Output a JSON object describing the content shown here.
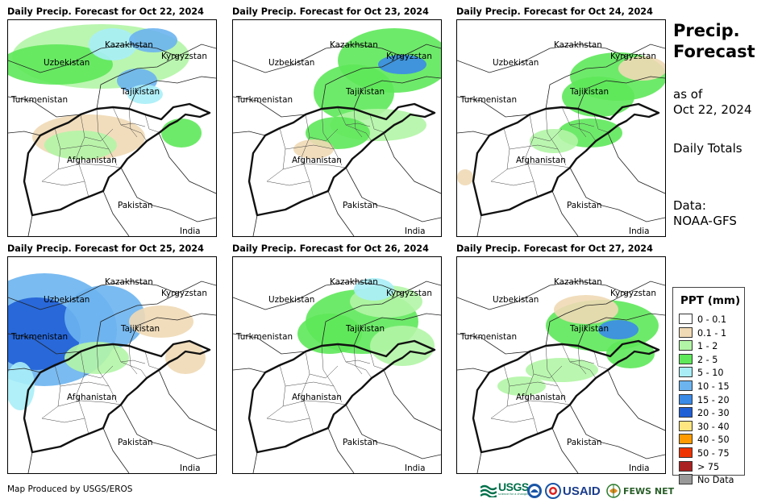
{
  "panels": [
    {
      "title": "Daily Precip. Forecast for Oct 22, 2024"
    },
    {
      "title": "Daily Precip. Forecast for Oct 23, 2024"
    },
    {
      "title": "Daily Precip. Forecast for Oct 24, 2024"
    },
    {
      "title": "Daily Precip. Forecast for Oct 25, 2024"
    },
    {
      "title": "Daily Precip. Forecast for Oct 26, 2024"
    },
    {
      "title": "Daily Precip. Forecast for Oct 27, 2024"
    }
  ],
  "map_labels": {
    "kazakhstan": "Kazakhstan",
    "kyrgyzstan": "Kyrgyzstan",
    "uzbekistan": "Uzbekistan",
    "tajikistan": "Tajikistan",
    "turkmenistan": "Turkmenistan",
    "afghanistan": "Afghanistan",
    "pakistan": "Pakistan",
    "india": "India"
  },
  "side": {
    "title_line1": "Precip.",
    "title_line2": "Forecast",
    "asof_line1": "as of",
    "asof_line2": "Oct 22, 2024",
    "totals": "Daily Totals",
    "data_line1": "Data:",
    "data_line2": "NOAA-GFS"
  },
  "legend": {
    "title": "PPT (mm)",
    "items": [
      {
        "label": "0 - 0.1",
        "color": "#ffffff"
      },
      {
        "label": "0.1 - 1",
        "color": "#f0d9b5"
      },
      {
        "label": "1 - 2",
        "color": "#b3f5a6"
      },
      {
        "label": "2 - 5",
        "color": "#5ee85a"
      },
      {
        "label": "5 - 10",
        "color": "#a9eef7"
      },
      {
        "label": "10 - 15",
        "color": "#6cb4f0"
      },
      {
        "label": "15 - 20",
        "color": "#3a8be8"
      },
      {
        "label": "20 - 30",
        "color": "#1f5fd6"
      },
      {
        "label": "30 - 40",
        "color": "#ffe680"
      },
      {
        "label": "40 - 50",
        "color": "#ff9b00"
      },
      {
        "label": "50 - 75",
        "color": "#ee3300"
      },
      {
        "label": "> 75",
        "color": "#aa2222"
      },
      {
        "label": "No Data",
        "color": "#999999"
      }
    ]
  },
  "credit": "Map Produced by USGS/EROS",
  "logos": {
    "usgs": "USGS",
    "usgs_tag": "science for a changing world",
    "usaid": "USAID",
    "fewsnet": "FEWS NET"
  }
}
